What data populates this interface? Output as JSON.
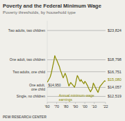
{
  "chart_data": {
    "type": "line",
    "title": "Poverty and the Federal Minimum Wage",
    "subtitle": "Poverty thresholds, by household type",
    "footer": "PEW RESEARCH CENTER",
    "annotation": "Annual minimum-wage\nearnings",
    "x": [
      1960,
      1961,
      1962,
      1963,
      1964,
      1965,
      1966,
      1967,
      1968,
      1969,
      1970,
      1971,
      1972,
      1973,
      1974,
      1975,
      1976,
      1977,
      1978,
      1979,
      1980,
      1981,
      1982,
      1983,
      1984,
      1985,
      1986,
      1987,
      1988,
      1989,
      1990,
      1991,
      1992,
      1993,
      1994,
      1995,
      1996,
      1997,
      1998,
      1999,
      2000,
      2001,
      2002,
      2003,
      2004,
      2005,
      2006,
      2007,
      2008,
      2009,
      2010,
      2011,
      2012,
      2013,
      2014,
      2015,
      2016,
      2017,
      2018,
      2019,
      2020,
      2021,
      2022
    ],
    "values": [
      14950,
      15200,
      15500,
      15800,
      16300,
      17000,
      17800,
      18500,
      19500,
      19100,
      18800,
      18400,
      18000,
      17600,
      17000,
      16600,
      16100,
      15700,
      16100,
      16500,
      16100,
      15600,
      14900,
      14300,
      14600,
      14900,
      14700,
      14500,
      14300,
      14100,
      14600,
      15400,
      16100,
      15800,
      15400,
      15100,
      15400,
      15100,
      14900,
      14700,
      15100,
      14900,
      14600,
      14300,
      13900,
      13600,
      13300,
      13600,
      13900,
      14800,
      14500,
      14100,
      13800,
      13500,
      13200,
      13700,
      14200,
      14400,
      14600,
      14800,
      15000,
      15200,
      15080
    ],
    "value_labels": [
      "$14,950",
      null,
      null,
      null,
      null,
      null,
      null,
      null,
      null,
      null,
      null,
      null,
      null,
      null,
      null,
      null,
      null,
      null,
      null,
      null,
      null,
      null,
      null,
      null,
      null,
      null,
      null,
      null,
      null,
      null,
      null,
      null,
      null,
      null,
      null,
      null,
      null,
      null,
      null,
      null,
      null,
      null,
      null,
      null,
      null,
      null,
      null,
      null,
      null,
      null,
      null,
      null,
      null,
      null,
      null,
      null,
      null,
      null,
      null,
      null,
      null,
      null,
      "$15,080"
    ],
    "color": "#8b8b00",
    "thresholds": [
      {
        "name": "Two adults, two children",
        "value": 23824,
        "value_label": "$23,824",
        "color": "#999999"
      },
      {
        "name": "One adult, two children",
        "value": 18798,
        "value_label": "$18,798",
        "color": "#999999"
      },
      {
        "name": "Two adults, one child",
        "value": 16751,
        "value_label": "$16,751",
        "color": "#999999"
      },
      {
        "name": "One adult,\none child",
        "value": 14057,
        "value_label": "$14,057",
        "color": "#999999"
      },
      {
        "name": "Single, no children",
        "value": 12519,
        "value_label": "$12,519",
        "color": "#999999"
      }
    ],
    "xlim": [
      1960,
      2022
    ],
    "ylim": [
      11500,
      25500
    ],
    "xticks": [
      {
        "value": 1960,
        "label": "'60"
      },
      {
        "value": 1970,
        "label": "'70"
      },
      {
        "value": 1980,
        "label": "'80"
      },
      {
        "value": 1990,
        "label": "'90"
      },
      {
        "value": 2000,
        "label": "'00"
      },
      {
        "value": 2010,
        "label": "'10"
      },
      {
        "value": 2022,
        "label": "'22"
      }
    ],
    "tick_labels": "x",
    "grid": false
  }
}
